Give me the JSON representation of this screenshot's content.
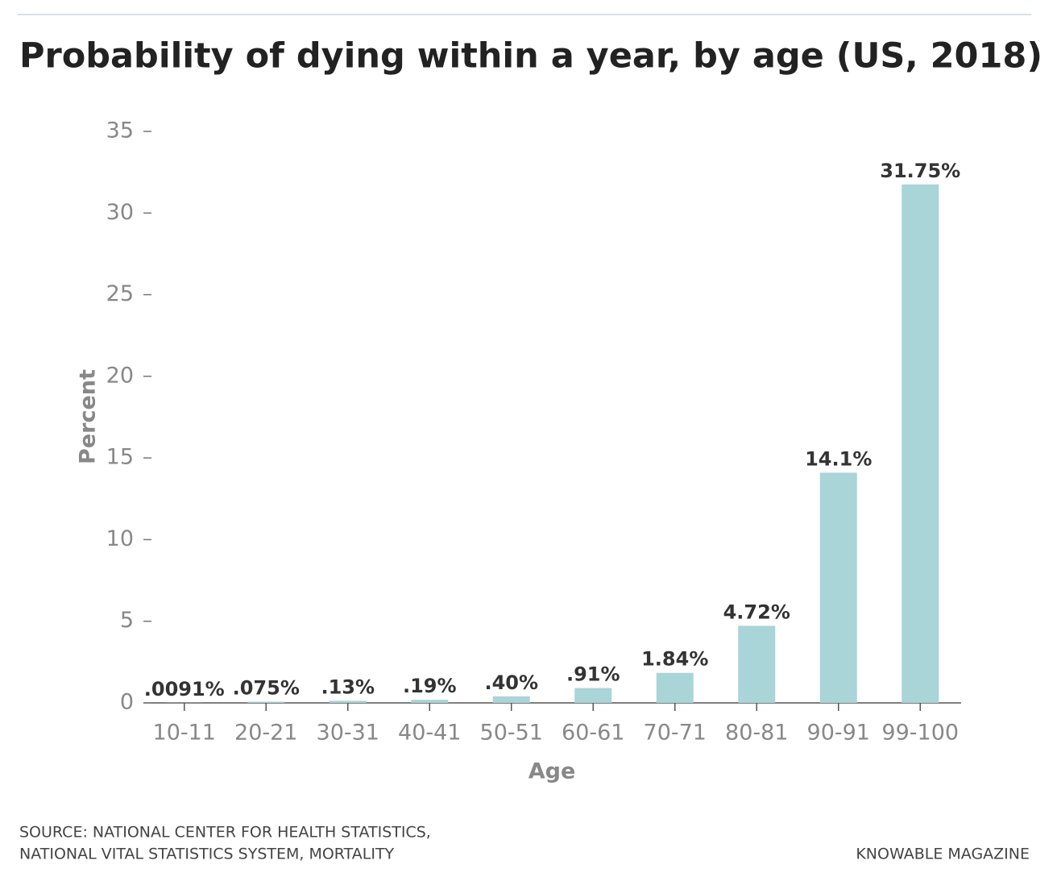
{
  "chart_data": {
    "type": "bar",
    "title": "Probability of dying within a year, by age (US, 2018)",
    "x_label": "Age",
    "y_label": "Percent",
    "categories": [
      "10-11",
      "20-21",
      "30-31",
      "40-41",
      "50-51",
      "60-61",
      "70-71",
      "80-81",
      "90-91",
      "99-100"
    ],
    "values": [
      0.0091,
      0.075,
      0.13,
      0.19,
      0.4,
      0.91,
      1.84,
      4.72,
      14.1,
      31.75
    ],
    "value_labels": [
      ".0091%",
      ".075%",
      ".13%",
      ".19%",
      ".40%",
      ".91%",
      "1.84%",
      "4.72%",
      "14.1%",
      "31.75%"
    ],
    "color": "#a9d4d8",
    "ylim": [
      0,
      35
    ],
    "yticks": [
      0,
      5,
      10,
      15,
      20,
      25,
      30,
      35
    ],
    "grid": false,
    "source": [
      "SOURCE: NATIONAL CENTER FOR HEALTH STATISTICS,",
      "NATIONAL VITAL STATISTICS SYSTEM, MORTALITY"
    ],
    "credit": "KNOWABLE MAGAZINE"
  }
}
